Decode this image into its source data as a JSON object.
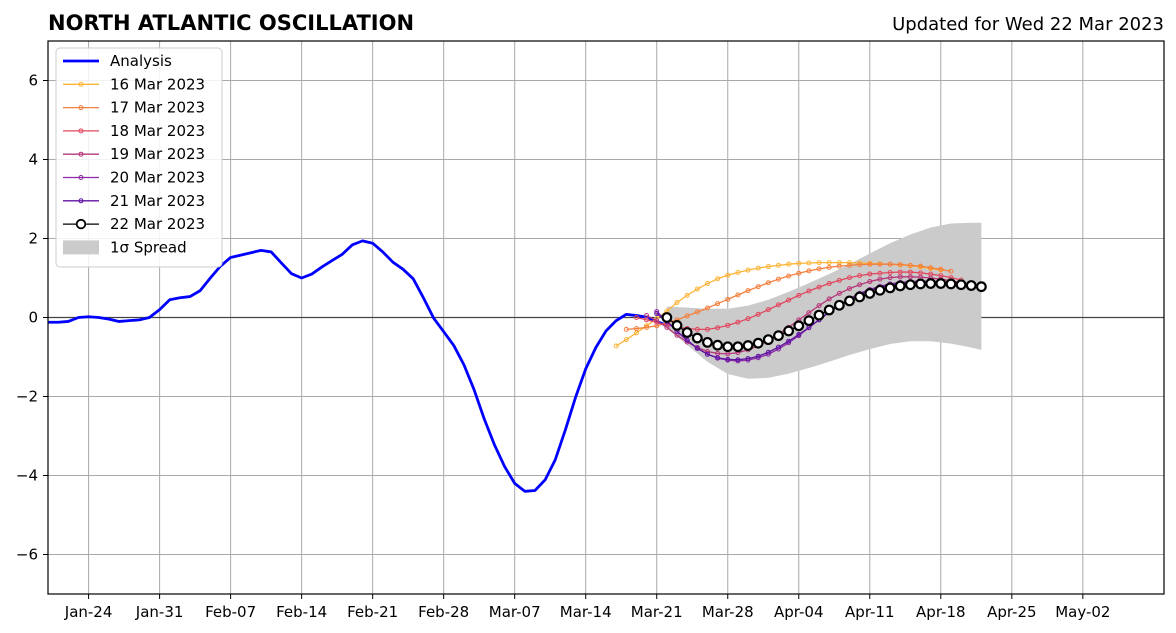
{
  "chart_data": {
    "type": "line",
    "title": "NORTH ATLANTIC OSCILLATION",
    "subtitle": "Updated for Wed 22 Mar 2023",
    "xlabel": "",
    "ylabel": "",
    "xlim": [
      "2023-01-20",
      "2023-05-10"
    ],
    "ylim": [
      -7,
      7
    ],
    "grid": true,
    "legend_position": "top-left",
    "x_ticks": [
      "2023-01-24",
      "2023-01-31",
      "2023-02-07",
      "2023-02-14",
      "2023-02-21",
      "2023-02-28",
      "2023-03-07",
      "2023-03-14",
      "2023-03-21",
      "2023-03-28",
      "2023-04-04",
      "2023-04-11",
      "2023-04-18",
      "2023-04-25",
      "2023-05-02"
    ],
    "x_tick_labels": [
      "Jan-24",
      "Jan-31",
      "Feb-07",
      "Feb-14",
      "Feb-21",
      "Feb-28",
      "Mar-07",
      "Mar-14",
      "Mar-21",
      "Mar-28",
      "Apr-04",
      "Apr-11",
      "Apr-18",
      "Apr-25",
      "May-02"
    ],
    "y_ticks": [
      -6,
      -4,
      -2,
      0,
      2,
      4,
      6
    ],
    "y_tick_labels": [
      "−6",
      "−4",
      "−2",
      "0",
      "2",
      "4",
      "6"
    ],
    "series": [
      {
        "name": "Analysis",
        "color": "#0000ff",
        "marker": "none",
        "x": [
          "2023-01-20",
          "2023-01-21",
          "2023-01-22",
          "2023-01-23",
          "2023-01-24",
          "2023-01-25",
          "2023-01-26",
          "2023-01-27",
          "2023-01-28",
          "2023-01-29",
          "2023-01-30",
          "2023-01-31",
          "2023-02-01",
          "2023-02-02",
          "2023-02-03",
          "2023-02-04",
          "2023-02-05",
          "2023-02-06",
          "2023-02-07",
          "2023-02-08",
          "2023-02-09",
          "2023-02-10",
          "2023-02-11",
          "2023-02-12",
          "2023-02-13",
          "2023-02-14",
          "2023-02-15",
          "2023-02-16",
          "2023-02-17",
          "2023-02-18",
          "2023-02-19",
          "2023-02-20",
          "2023-02-21",
          "2023-02-22",
          "2023-02-23",
          "2023-02-24",
          "2023-02-25",
          "2023-02-26",
          "2023-02-27",
          "2023-02-28",
          "2023-03-01",
          "2023-03-02",
          "2023-03-03",
          "2023-03-04",
          "2023-03-05",
          "2023-03-06",
          "2023-03-07",
          "2023-03-08",
          "2023-03-09",
          "2023-03-10",
          "2023-03-11",
          "2023-03-12",
          "2023-03-13",
          "2023-03-14",
          "2023-03-15",
          "2023-03-16",
          "2023-03-17",
          "2023-03-18",
          "2023-03-19",
          "2023-03-20",
          "2023-03-21",
          "2023-03-22"
        ],
        "values": [
          -0.12,
          -0.12,
          -0.1,
          0.0,
          0.02,
          0.0,
          -0.04,
          -0.1,
          -0.08,
          -0.06,
          0.0,
          0.2,
          0.45,
          0.5,
          0.53,
          0.68,
          1.0,
          1.3,
          1.52,
          1.58,
          1.64,
          1.7,
          1.66,
          1.38,
          1.11,
          1.0,
          1.1,
          1.28,
          1.44,
          1.6,
          1.84,
          1.94,
          1.88,
          1.66,
          1.4,
          1.22,
          0.98,
          0.5,
          -0.01,
          -0.36,
          -0.71,
          -1.2,
          -1.83,
          -2.57,
          -3.22,
          -3.77,
          -4.2,
          -4.4,
          -4.38,
          -4.11,
          -3.6,
          -2.84,
          -2.02,
          -1.3,
          -0.76,
          -0.34,
          -0.08,
          0.08,
          0.05,
          0.01,
          -0.1,
          -0.2
        ]
      },
      {
        "name": "16 Mar 2023",
        "color": "#fcb437",
        "marker": "dot",
        "x": [
          "2023-03-17",
          "2023-03-18",
          "2023-03-19",
          "2023-03-20",
          "2023-03-21",
          "2023-03-22",
          "2023-03-23",
          "2023-03-24",
          "2023-03-25",
          "2023-03-26",
          "2023-03-27",
          "2023-03-28",
          "2023-03-29",
          "2023-03-30",
          "2023-03-31",
          "2023-04-01",
          "2023-04-02",
          "2023-04-03",
          "2023-04-04",
          "2023-04-05",
          "2023-04-06",
          "2023-04-07",
          "2023-04-08",
          "2023-04-09",
          "2023-04-10",
          "2023-04-11",
          "2023-04-12",
          "2023-04-13",
          "2023-04-14",
          "2023-04-15",
          "2023-04-16",
          "2023-04-17",
          "2023-04-18"
        ],
        "values": [
          -0.72,
          -0.56,
          -0.39,
          -0.21,
          -0.03,
          0.16,
          0.38,
          0.56,
          0.72,
          0.86,
          0.98,
          1.07,
          1.14,
          1.2,
          1.25,
          1.29,
          1.32,
          1.35,
          1.37,
          1.38,
          1.39,
          1.39,
          1.39,
          1.39,
          1.38,
          1.37,
          1.36,
          1.35,
          1.33,
          1.31,
          1.28,
          1.24,
          1.2
        ]
      },
      {
        "name": "17 Mar 2023",
        "color": "#f47e3c",
        "marker": "dot",
        "x": [
          "2023-03-18",
          "2023-03-19",
          "2023-03-20",
          "2023-03-21",
          "2023-03-22",
          "2023-03-23",
          "2023-03-24",
          "2023-03-25",
          "2023-03-26",
          "2023-03-27",
          "2023-03-28",
          "2023-03-29",
          "2023-03-30",
          "2023-03-31",
          "2023-04-01",
          "2023-04-02",
          "2023-04-03",
          "2023-04-04",
          "2023-04-05",
          "2023-04-06",
          "2023-04-07",
          "2023-04-08",
          "2023-04-09",
          "2023-04-10",
          "2023-04-11",
          "2023-04-12",
          "2023-04-13",
          "2023-04-14",
          "2023-04-15",
          "2023-04-16",
          "2023-04-17",
          "2023-04-18",
          "2023-04-19"
        ],
        "values": [
          -0.3,
          -0.28,
          -0.25,
          -0.21,
          -0.14,
          -0.06,
          0.04,
          0.14,
          0.24,
          0.35,
          0.46,
          0.57,
          0.68,
          0.78,
          0.88,
          0.97,
          1.05,
          1.12,
          1.18,
          1.23,
          1.27,
          1.3,
          1.32,
          1.34,
          1.35,
          1.35,
          1.35,
          1.34,
          1.32,
          1.3,
          1.26,
          1.22,
          1.17
        ]
      },
      {
        "name": "18 Mar 2023",
        "color": "#e1485f",
        "marker": "dot",
        "x": [
          "2023-03-19",
          "2023-03-20",
          "2023-03-21",
          "2023-03-22",
          "2023-03-23",
          "2023-03-24",
          "2023-03-25",
          "2023-03-26",
          "2023-03-27",
          "2023-03-28",
          "2023-03-29",
          "2023-03-30",
          "2023-03-31",
          "2023-04-01",
          "2023-04-02",
          "2023-04-03",
          "2023-04-04",
          "2023-04-05",
          "2023-04-06",
          "2023-04-07",
          "2023-04-08",
          "2023-04-09",
          "2023-04-10",
          "2023-04-11",
          "2023-04-12",
          "2023-04-13",
          "2023-04-14",
          "2023-04-15",
          "2023-04-16",
          "2023-04-17",
          "2023-04-18",
          "2023-04-19",
          "2023-04-20"
        ],
        "values": [
          0.0,
          -0.06,
          -0.12,
          -0.19,
          -0.24,
          -0.28,
          -0.3,
          -0.3,
          -0.26,
          -0.2,
          -0.12,
          -0.03,
          0.08,
          0.2,
          0.32,
          0.44,
          0.56,
          0.67,
          0.77,
          0.86,
          0.94,
          1.01,
          1.06,
          1.1,
          1.12,
          1.14,
          1.15,
          1.15,
          1.13,
          1.1,
          1.06,
          1.01,
          0.95
        ]
      },
      {
        "name": "19 Mar 2023",
        "color": "#b73779",
        "marker": "dot",
        "x": [
          "2023-03-20",
          "2023-03-21",
          "2023-03-22",
          "2023-03-23",
          "2023-03-24",
          "2023-03-25",
          "2023-03-26",
          "2023-03-27",
          "2023-03-28",
          "2023-03-29",
          "2023-03-30",
          "2023-03-31",
          "2023-04-01",
          "2023-04-02",
          "2023-04-03",
          "2023-04-04",
          "2023-04-05",
          "2023-04-06",
          "2023-04-07",
          "2023-04-08",
          "2023-04-09",
          "2023-04-10",
          "2023-04-11",
          "2023-04-12",
          "2023-04-13",
          "2023-04-14",
          "2023-04-15",
          "2023-04-16",
          "2023-04-17",
          "2023-04-18",
          "2023-04-19",
          "2023-04-20",
          "2023-04-21"
        ],
        "values": [
          0.05,
          -0.08,
          -0.25,
          -0.45,
          -0.62,
          -0.76,
          -0.86,
          -0.91,
          -0.92,
          -0.89,
          -0.82,
          -0.72,
          -0.58,
          -0.42,
          -0.25,
          -0.06,
          0.12,
          0.3,
          0.47,
          0.61,
          0.73,
          0.83,
          0.91,
          0.97,
          1.01,
          1.03,
          1.03,
          1.02,
          1.0,
          0.97,
          0.93,
          0.88,
          0.82
        ]
      },
      {
        "name": "20 Mar 2023",
        "color": "#8c29a6",
        "marker": "dot",
        "x": [
          "2023-03-21",
          "2023-03-22",
          "2023-03-23",
          "2023-03-24",
          "2023-03-25",
          "2023-03-26",
          "2023-03-27",
          "2023-03-28",
          "2023-03-29",
          "2023-03-30",
          "2023-03-31",
          "2023-04-01",
          "2023-04-02",
          "2023-04-03",
          "2023-04-04",
          "2023-04-05",
          "2023-04-06",
          "2023-04-07",
          "2023-04-08",
          "2023-04-09",
          "2023-04-10",
          "2023-04-11",
          "2023-04-12",
          "2023-04-13",
          "2023-04-14",
          "2023-04-15",
          "2023-04-16",
          "2023-04-17",
          "2023-04-18",
          "2023-04-19",
          "2023-04-20",
          "2023-04-21",
          "2023-04-22"
        ],
        "values": [
          0.15,
          -0.08,
          -0.35,
          -0.58,
          -0.78,
          -0.93,
          -1.03,
          -1.08,
          -1.1,
          -1.08,
          -1.02,
          -0.93,
          -0.8,
          -0.64,
          -0.46,
          -0.26,
          -0.06,
          0.14,
          0.32,
          0.48,
          0.61,
          0.71,
          0.79,
          0.85,
          0.89,
          0.91,
          0.92,
          0.92,
          0.91,
          0.89,
          0.86,
          0.83,
          0.79
        ]
      },
      {
        "name": "21 Mar 2023",
        "color": "#5e13a3",
        "marker": "dot",
        "x": [
          "2023-03-21",
          "2023-03-22",
          "2023-03-23",
          "2023-03-24",
          "2023-03-25",
          "2023-03-26",
          "2023-03-27",
          "2023-03-28",
          "2023-03-29",
          "2023-03-30",
          "2023-03-31",
          "2023-04-01",
          "2023-04-02",
          "2023-04-03",
          "2023-04-04",
          "2023-04-05",
          "2023-04-06",
          "2023-04-07",
          "2023-04-08",
          "2023-04-09",
          "2023-04-10",
          "2023-04-11",
          "2023-04-12",
          "2023-04-13",
          "2023-04-14",
          "2023-04-15",
          "2023-04-16",
          "2023-04-17",
          "2023-04-18",
          "2023-04-19",
          "2023-04-20",
          "2023-04-21",
          "2023-04-22"
        ],
        "values": [
          0.1,
          -0.1,
          -0.35,
          -0.58,
          -0.78,
          -0.93,
          -1.02,
          -1.06,
          -1.07,
          -1.04,
          -0.98,
          -0.88,
          -0.75,
          -0.6,
          -0.43,
          -0.25,
          -0.06,
          0.13,
          0.3,
          0.45,
          0.58,
          0.68,
          0.76,
          0.82,
          0.86,
          0.88,
          0.89,
          0.89,
          0.88,
          0.86,
          0.84,
          0.81,
          0.78
        ]
      },
      {
        "name": "22 Mar 2023",
        "color": "#000000",
        "marker": "open-circle",
        "x": [
          "2023-03-22",
          "2023-03-23",
          "2023-03-24",
          "2023-03-25",
          "2023-03-26",
          "2023-03-27",
          "2023-03-28",
          "2023-03-29",
          "2023-03-30",
          "2023-03-31",
          "2023-04-01",
          "2023-04-02",
          "2023-04-03",
          "2023-04-04",
          "2023-04-05",
          "2023-04-06",
          "2023-04-07",
          "2023-04-08",
          "2023-04-09",
          "2023-04-10",
          "2023-04-11",
          "2023-04-12",
          "2023-04-13",
          "2023-04-14",
          "2023-04-15",
          "2023-04-16",
          "2023-04-17",
          "2023-04-18",
          "2023-04-19",
          "2023-04-20",
          "2023-04-21",
          "2023-04-22"
        ],
        "values": [
          0.0,
          -0.2,
          -0.38,
          -0.52,
          -0.63,
          -0.7,
          -0.74,
          -0.74,
          -0.71,
          -0.65,
          -0.56,
          -0.46,
          -0.34,
          -0.21,
          -0.08,
          0.06,
          0.19,
          0.31,
          0.42,
          0.52,
          0.61,
          0.69,
          0.75,
          0.8,
          0.83,
          0.85,
          0.86,
          0.86,
          0.85,
          0.83,
          0.81,
          0.78
        ]
      }
    ],
    "spread": {
      "name": "1σ Spread",
      "color": "#cbcbcb",
      "x": [
        "2023-03-22",
        "2023-03-24",
        "2023-03-26",
        "2023-03-28",
        "2023-03-30",
        "2023-04-01",
        "2023-04-03",
        "2023-04-05",
        "2023-04-07",
        "2023-04-09",
        "2023-04-11",
        "2023-04-13",
        "2023-04-15",
        "2023-04-17",
        "2023-04-19",
        "2023-04-21",
        "2023-04-22"
      ],
      "upper": [
        0.28,
        0.25,
        0.22,
        0.22,
        0.3,
        0.45,
        0.65,
        0.87,
        1.1,
        1.35,
        1.62,
        1.88,
        2.1,
        2.28,
        2.38,
        2.4,
        2.4
      ],
      "lower": [
        -0.28,
        -0.7,
        -1.12,
        -1.43,
        -1.55,
        -1.53,
        -1.42,
        -1.28,
        -1.12,
        -0.95,
        -0.8,
        -0.67,
        -0.6,
        -0.6,
        -0.66,
        -0.76,
        -0.82
      ]
    }
  }
}
